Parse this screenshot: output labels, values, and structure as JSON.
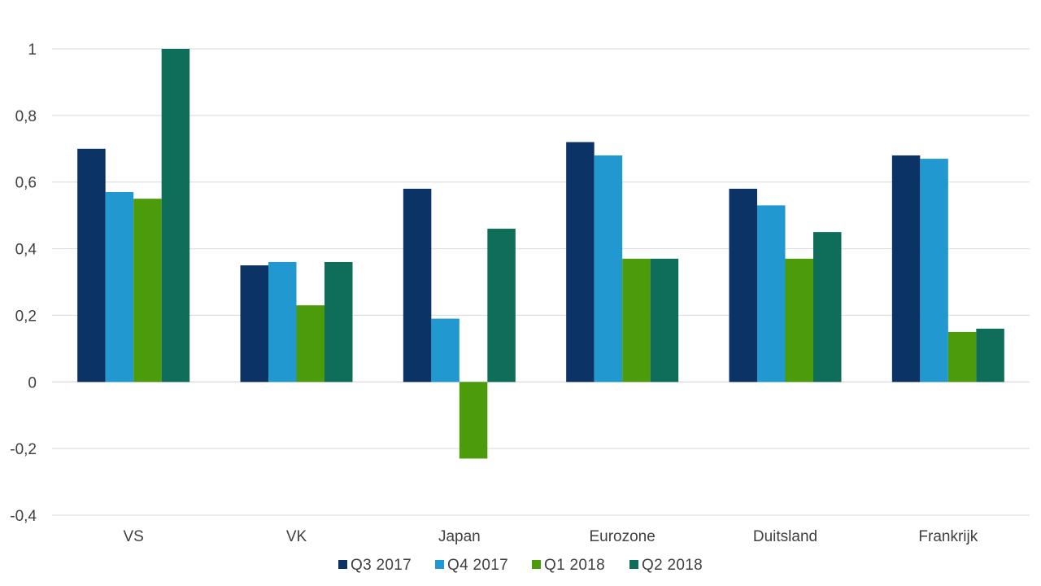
{
  "chart_data": {
    "type": "bar",
    "categories": [
      "VS",
      "VK",
      "Japan",
      "Eurozone",
      "Duitsland",
      "Frankrijk"
    ],
    "series": [
      {
        "name": "Q3 2017",
        "color": "#0b3366",
        "values": [
          0.7,
          0.35,
          0.58,
          0.72,
          0.58,
          0.68
        ]
      },
      {
        "name": "Q4 2017",
        "color": "#2198d0",
        "values": [
          0.57,
          0.36,
          0.19,
          0.68,
          0.53,
          0.67
        ]
      },
      {
        "name": "Q1 2018",
        "color": "#4c9b0b",
        "values": [
          0.55,
          0.23,
          -0.23,
          0.37,
          0.37,
          0.15
        ]
      },
      {
        "name": "Q2 2018",
        "color": "#0e6e5a",
        "values": [
          1.0,
          0.36,
          0.46,
          0.37,
          0.45,
          0.16
        ]
      }
    ],
    "y_ticks": [
      "1",
      "0,8",
      "0,6",
      "0,4",
      "0,2",
      "0",
      "-0,2",
      "-0,4"
    ],
    "y_tick_values": [
      1,
      0.8,
      0.6,
      0.4,
      0.2,
      0,
      -0.2,
      -0.4
    ],
    "ylim": [
      -0.4,
      1.0
    ],
    "grid": true,
    "legend_position": "bottom",
    "title": "",
    "xlabel": "",
    "ylabel": ""
  }
}
